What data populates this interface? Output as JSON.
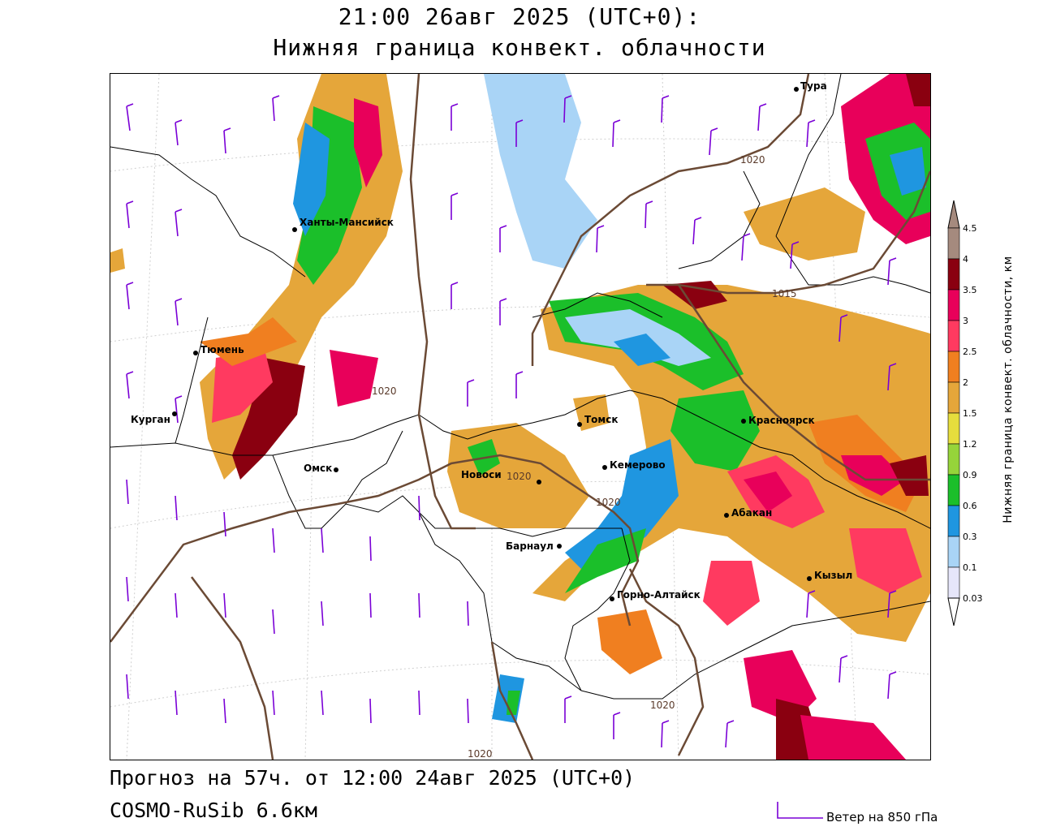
{
  "header": {
    "time_title": "21:00 26авг 2025 (UTC+0):",
    "parameter_title": "Нижняя граница конвект. облачности"
  },
  "footer": {
    "forecast_info": "Прогноз на 57ч. от 12:00 24авг 2025 (UTC+0)",
    "model_info": "COSMO-RuSib 6.6км"
  },
  "wind_legend": {
    "label": "Ветер на 850 гПа",
    "color": "#7a00d6"
  },
  "colorbar": {
    "title": "Нижняя граница конвект. облачности, км",
    "levels": [
      {
        "label": "4.5",
        "color": "#a58a7e"
      },
      {
        "label": "4",
        "color": "#8a0010"
      },
      {
        "label": "3.5",
        "color": "#e8005a"
      },
      {
        "label": "3",
        "color": "#ff3a60"
      },
      {
        "label": "2.5",
        "color": "#f07f20"
      },
      {
        "label": "2",
        "color": "#e5a63a"
      },
      {
        "label": "1.5",
        "color": "#e6dd3d"
      },
      {
        "label": "1.2",
        "color": "#96d43a"
      },
      {
        "label": "0.9",
        "color": "#1bbf2a"
      },
      {
        "label": "0.6",
        "color": "#1f96e0"
      },
      {
        "label": "0.3",
        "color": "#a9d4f6"
      },
      {
        "label": "0.1",
        "color": "#e6e6fa"
      },
      {
        "label": "0.03",
        "color": "#ffffff"
      }
    ]
  },
  "cities": [
    {
      "name": "Тура"
    },
    {
      "name": "Ханты-Мансийск"
    },
    {
      "name": "Тюмень"
    },
    {
      "name": "Курган"
    },
    {
      "name": "Омск"
    },
    {
      "name": "Томск"
    },
    {
      "name": "Новоси"
    },
    {
      "name": "Кемерово"
    },
    {
      "name": "Красноярск"
    },
    {
      "name": "Абакан"
    },
    {
      "name": "Барнаул"
    },
    {
      "name": "Горно-Алтайск"
    },
    {
      "name": "Кызыл"
    }
  ],
  "isobar_labels": [
    "1020",
    "1015",
    "1020",
    "1020",
    "1020",
    "1020",
    "1020"
  ]
}
